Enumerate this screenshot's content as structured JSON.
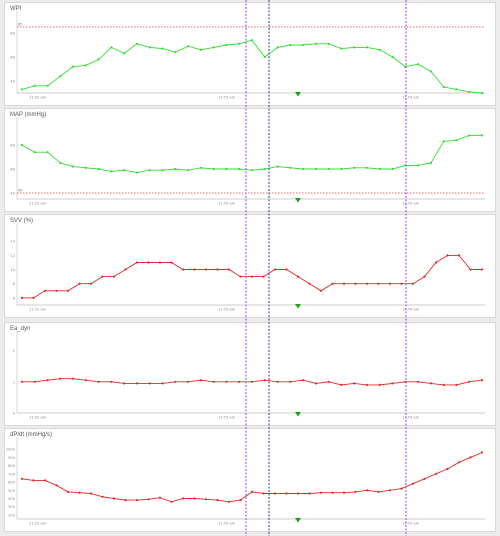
{
  "colors": {
    "green_series": "#33dd33",
    "red_series": "#e02828",
    "threshold": "#d23c3c",
    "marker_purple": "#a040e0",
    "marker_blue": "#2a3a9a",
    "event_marker": "#1aa31a"
  },
  "time_labels": [
    "11:52 am",
    "11:53 am",
    "11:54 am"
  ],
  "chart_data": [
    {
      "type": "line",
      "title": "WPI",
      "ylim": [
        30,
        95
      ],
      "ytick_labels": [
        "80",
        "60",
        "40"
      ],
      "threshold": 85,
      "threshold_label": "85",
      "series": [
        {
          "color": "green",
          "values": [
            33,
            36,
            36,
            44,
            52,
            53,
            58,
            68,
            63,
            71,
            68,
            67,
            64,
            69,
            66,
            68,
            70,
            71,
            74,
            60,
            68,
            70,
            70,
            71,
            71,
            67,
            68,
            68,
            66,
            60,
            52,
            54,
            48,
            35,
            33,
            31,
            30
          ]
        }
      ]
    },
    {
      "type": "line",
      "title": "MAP (mmHg)",
      "ylim": [
        35,
        100
      ],
      "ytick_labels": [
        "80",
        "60",
        "40"
      ],
      "threshold": 40,
      "threshold_label": "40",
      "series": [
        {
          "color": "green",
          "values": [
            80,
            74,
            74,
            65,
            62,
            61,
            60,
            58,
            59,
            57,
            59,
            59,
            60,
            59,
            61,
            60,
            60,
            60,
            59,
            60,
            62,
            61,
            60,
            60,
            60,
            60,
            61,
            61,
            60,
            60,
            63,
            63,
            65,
            83,
            84,
            88,
            88
          ]
        }
      ]
    },
    {
      "type": "line",
      "title": "SVV (%)",
      "ylim": [
        5,
        16
      ],
      "ytick_labels": [
        "14",
        "12",
        "10",
        "8",
        "6"
      ],
      "series": [
        {
          "color": "red",
          "values": [
            6,
            6,
            7,
            7,
            7,
            8,
            8,
            9,
            9,
            10,
            11,
            11,
            11,
            11,
            10,
            10,
            10,
            10,
            10,
            9,
            9,
            9,
            10,
            10,
            9,
            8,
            7,
            8,
            8,
            8,
            8,
            8,
            8,
            8,
            8,
            9,
            11,
            12,
            12,
            10,
            10
          ]
        }
      ]
    },
    {
      "type": "line",
      "title": "Ea_dyn",
      "ylim": [
        0,
        2.5
      ],
      "ytick_labels": [
        "2",
        "1",
        "0"
      ],
      "series": [
        {
          "color": "red",
          "values": [
            1.0,
            1.0,
            1.05,
            1.1,
            1.1,
            1.05,
            1.0,
            1.0,
            0.95,
            0.95,
            0.95,
            0.95,
            1.0,
            1.0,
            1.05,
            1.0,
            1.0,
            1.0,
            1.0,
            1.05,
            1.0,
            1.0,
            1.05,
            0.95,
            1.0,
            0.9,
            0.95,
            0.9,
            0.9,
            0.95,
            1.0,
            1.0,
            0.95,
            0.9,
            0.9,
            1.0,
            1.05
          ]
        }
      ]
    },
    {
      "type": "line",
      "title": "dP/dt (mmHg/s)",
      "ylim": [
        150,
        1100
      ],
      "ytick_labels": [
        "1000",
        "900",
        "800",
        "700",
        "600",
        "500",
        "400",
        "300",
        "200"
      ],
      "series": [
        {
          "color": "red",
          "values": [
            640,
            620,
            620,
            560,
            480,
            470,
            460,
            420,
            400,
            380,
            380,
            390,
            410,
            360,
            400,
            400,
            390,
            380,
            360,
            380,
            480,
            460,
            460,
            460,
            460,
            460,
            470,
            470,
            470,
            480,
            500,
            480,
            500,
            520,
            580,
            640,
            700,
            760,
            840,
            900,
            960
          ]
        }
      ]
    }
  ]
}
